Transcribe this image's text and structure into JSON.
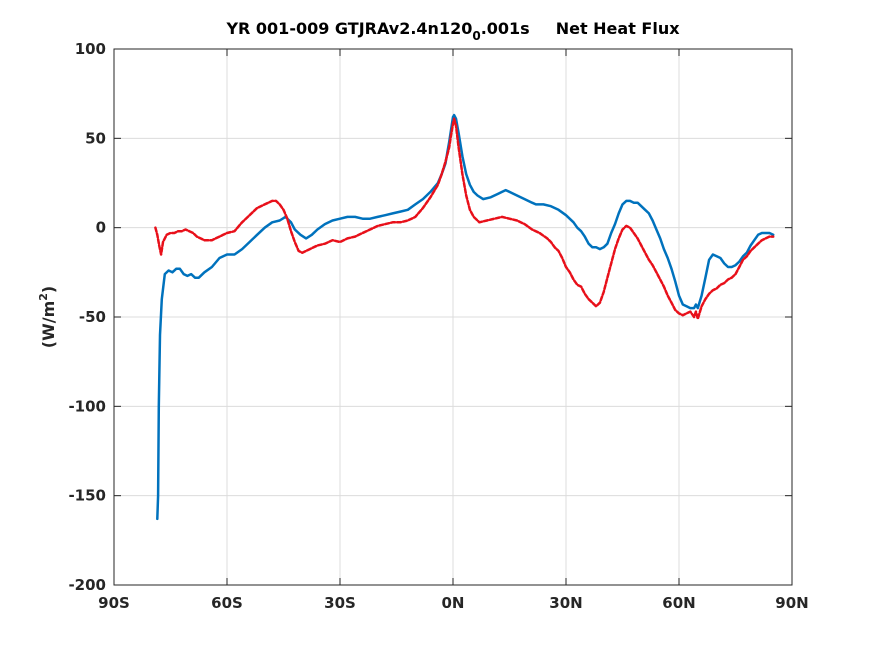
{
  "chart_data": {
    "type": "line",
    "title": {
      "prefix": "YR 001-009 GTJRAv2.4n120",
      "subscript": "0",
      "suffix": ".001s",
      "variable": "Net Heat Flux"
    },
    "ylabel": {
      "main": "(W/m",
      "sup": "2",
      "close": ")"
    },
    "xlabel": "",
    "xlim": [
      -90,
      90
    ],
    "ylim": [
      -200,
      100
    ],
    "grid": true,
    "x_ticks": [
      {
        "value": -90,
        "label": "90S"
      },
      {
        "value": -60,
        "label": "60S"
      },
      {
        "value": -30,
        "label": "30S"
      },
      {
        "value": 0,
        "label": "0N"
      },
      {
        "value": 30,
        "label": "30N"
      },
      {
        "value": 60,
        "label": "60N"
      },
      {
        "value": 90,
        "label": "90N"
      }
    ],
    "y_ticks": [
      {
        "value": 100,
        "label": "100"
      },
      {
        "value": 50,
        "label": "50"
      },
      {
        "value": 0,
        "label": "0"
      },
      {
        "value": -50,
        "label": "-50"
      },
      {
        "value": -100,
        "label": "-100"
      },
      {
        "value": -150,
        "label": "-150"
      },
      {
        "value": -200,
        "label": "-200"
      }
    ],
    "series": [
      {
        "color": "#0072bd",
        "style": "solid",
        "points": [
          [
            -78.5,
            -163
          ],
          [
            -78.3,
            -150
          ],
          [
            -78.1,
            -100
          ],
          [
            -77.8,
            -60
          ],
          [
            -77.3,
            -40
          ],
          [
            -76.5,
            -26
          ],
          [
            -75.5,
            -24
          ],
          [
            -74.5,
            -25
          ],
          [
            -73.5,
            -23
          ],
          [
            -72.5,
            -23
          ],
          [
            -71.5,
            -26
          ],
          [
            -70.5,
            -27
          ],
          [
            -69.5,
            -26
          ],
          [
            -68.5,
            -28
          ],
          [
            -67.5,
            -28
          ],
          [
            -66,
            -25
          ],
          [
            -64,
            -22
          ],
          [
            -62,
            -17
          ],
          [
            -60,
            -15
          ],
          [
            -58,
            -15
          ],
          [
            -56,
            -12
          ],
          [
            -54,
            -8
          ],
          [
            -52,
            -4
          ],
          [
            -50,
            0
          ],
          [
            -48,
            3
          ],
          [
            -46,
            4
          ],
          [
            -44.5,
            6
          ],
          [
            -43,
            3
          ],
          [
            -42,
            -1
          ],
          [
            -40.5,
            -4
          ],
          [
            -39,
            -6
          ],
          [
            -37.5,
            -4
          ],
          [
            -36,
            -1
          ],
          [
            -34,
            2
          ],
          [
            -32,
            4
          ],
          [
            -30,
            5
          ],
          [
            -28,
            6
          ],
          [
            -26,
            6
          ],
          [
            -24,
            5
          ],
          [
            -22,
            5
          ],
          [
            -20,
            6
          ],
          [
            -18,
            7
          ],
          [
            -16,
            8
          ],
          [
            -14,
            9
          ],
          [
            -12,
            10
          ],
          [
            -10,
            13
          ],
          [
            -8,
            16
          ],
          [
            -6,
            20
          ],
          [
            -4,
            25
          ],
          [
            -3,
            30
          ],
          [
            -2,
            36
          ],
          [
            -1.5,
            42
          ],
          [
            -1,
            48
          ],
          [
            -0.5,
            55
          ],
          [
            0,
            62
          ],
          [
            0.3,
            63
          ],
          [
            0.8,
            61
          ],
          [
            1.5,
            53
          ],
          [
            2.5,
            40
          ],
          [
            3.5,
            30
          ],
          [
            4.5,
            24
          ],
          [
            5.5,
            20
          ],
          [
            6.5,
            18
          ],
          [
            8,
            16
          ],
          [
            10,
            17
          ],
          [
            12,
            19
          ],
          [
            13,
            20
          ],
          [
            14,
            21
          ],
          [
            15,
            20
          ],
          [
            17,
            18
          ],
          [
            19,
            16
          ],
          [
            21,
            14
          ],
          [
            22,
            13
          ],
          [
            24,
            13
          ],
          [
            26,
            12
          ],
          [
            28,
            10
          ],
          [
            30,
            7
          ],
          [
            32,
            3
          ],
          [
            33,
            0
          ],
          [
            34,
            -2
          ],
          [
            35,
            -5
          ],
          [
            36,
            -9
          ],
          [
            37,
            -11
          ],
          [
            38,
            -11
          ],
          [
            39,
            -12
          ],
          [
            40,
            -11
          ],
          [
            41,
            -9
          ],
          [
            42,
            -3
          ],
          [
            43,
            2
          ],
          [
            44,
            8
          ],
          [
            45,
            13
          ],
          [
            46,
            15
          ],
          [
            47,
            15
          ],
          [
            48,
            14
          ],
          [
            49,
            14
          ],
          [
            50,
            12
          ],
          [
            51,
            10
          ],
          [
            52,
            8
          ],
          [
            53,
            4
          ],
          [
            54,
            -1
          ],
          [
            55,
            -6
          ],
          [
            56,
            -12
          ],
          [
            57,
            -17
          ],
          [
            58,
            -23
          ],
          [
            59,
            -30
          ],
          [
            60,
            -38
          ],
          [
            61,
            -43
          ],
          [
            62,
            -44
          ],
          [
            63,
            -45
          ],
          [
            64,
            -45
          ],
          [
            64.5,
            -43
          ],
          [
            65,
            -45
          ],
          [
            66,
            -38
          ],
          [
            67,
            -28
          ],
          [
            68,
            -18
          ],
          [
            69,
            -15
          ],
          [
            70,
            -16
          ],
          [
            71,
            -17
          ],
          [
            72,
            -20
          ],
          [
            73,
            -22
          ],
          [
            74,
            -22
          ],
          [
            75,
            -21
          ],
          [
            76,
            -19
          ],
          [
            77,
            -16
          ],
          [
            78,
            -14
          ],
          [
            79,
            -10
          ],
          [
            80,
            -7
          ],
          [
            81,
            -4
          ],
          [
            82,
            -3
          ],
          [
            83,
            -3
          ],
          [
            84,
            -3
          ],
          [
            85,
            -4
          ]
        ]
      },
      {
        "color": "#e8101a",
        "style": "dashed",
        "points": [
          [
            -79,
            0
          ],
          [
            -78.5,
            -4
          ],
          [
            -78,
            -10
          ],
          [
            -77.5,
            -15
          ],
          [
            -77,
            -8
          ],
          [
            -76.5,
            -6
          ],
          [
            -76,
            -4
          ],
          [
            -75,
            -3
          ],
          [
            -74,
            -3
          ],
          [
            -73,
            -2
          ],
          [
            -72,
            -2
          ],
          [
            -71,
            -1
          ],
          [
            -70,
            -2
          ],
          [
            -69,
            -3
          ],
          [
            -68,
            -5
          ],
          [
            -67,
            -6
          ],
          [
            -66,
            -7
          ],
          [
            -65,
            -7
          ],
          [
            -64,
            -7
          ],
          [
            -63,
            -6
          ],
          [
            -62,
            -5
          ],
          [
            -61,
            -4
          ],
          [
            -60,
            -3
          ],
          [
            -58,
            -2
          ],
          [
            -56,
            3
          ],
          [
            -54,
            7
          ],
          [
            -52,
            11
          ],
          [
            -50,
            13
          ],
          [
            -48,
            15
          ],
          [
            -47,
            15
          ],
          [
            -46,
            13
          ],
          [
            -45,
            10
          ],
          [
            -44,
            5
          ],
          [
            -43,
            -2
          ],
          [
            -42,
            -8
          ],
          [
            -41,
            -13
          ],
          [
            -40,
            -14
          ],
          [
            -39,
            -13
          ],
          [
            -38,
            -12
          ],
          [
            -36,
            -10
          ],
          [
            -34,
            -9
          ],
          [
            -32,
            -7
          ],
          [
            -30,
            -8
          ],
          [
            -28,
            -6
          ],
          [
            -26,
            -5
          ],
          [
            -24,
            -3
          ],
          [
            -22,
            -1
          ],
          [
            -20,
            1
          ],
          [
            -18,
            2
          ],
          [
            -16,
            3
          ],
          [
            -14,
            3
          ],
          [
            -12,
            4
          ],
          [
            -10,
            6
          ],
          [
            -8,
            11
          ],
          [
            -6,
            17
          ],
          [
            -4,
            24
          ],
          [
            -3,
            30
          ],
          [
            -2,
            37
          ],
          [
            -1,
            45
          ],
          [
            -0.5,
            52
          ],
          [
            0,
            58
          ],
          [
            0.3,
            61
          ],
          [
            0.8,
            57
          ],
          [
            1.5,
            45
          ],
          [
            2.5,
            30
          ],
          [
            3.5,
            18
          ],
          [
            4.5,
            10
          ],
          [
            5.5,
            6
          ],
          [
            7,
            3
          ],
          [
            9,
            4
          ],
          [
            11,
            5
          ],
          [
            13,
            6
          ],
          [
            15,
            5
          ],
          [
            17,
            4
          ],
          [
            19,
            2
          ],
          [
            21,
            -1
          ],
          [
            23,
            -3
          ],
          [
            25,
            -6
          ],
          [
            26,
            -8
          ],
          [
            27,
            -11
          ],
          [
            28,
            -13
          ],
          [
            29,
            -17
          ],
          [
            30,
            -22
          ],
          [
            31,
            -25
          ],
          [
            32,
            -29
          ],
          [
            33,
            -32
          ],
          [
            34,
            -33
          ],
          [
            35,
            -37
          ],
          [
            36,
            -40
          ],
          [
            37,
            -42
          ],
          [
            38,
            -44
          ],
          [
            39,
            -42
          ],
          [
            40,
            -36
          ],
          [
            41,
            -28
          ],
          [
            42,
            -20
          ],
          [
            43,
            -12
          ],
          [
            44,
            -6
          ],
          [
            45,
            -1
          ],
          [
            46,
            1
          ],
          [
            47,
            0
          ],
          [
            48,
            -3
          ],
          [
            49,
            -6
          ],
          [
            50,
            -10
          ],
          [
            51,
            -14
          ],
          [
            52,
            -18
          ],
          [
            53,
            -21
          ],
          [
            54,
            -25
          ],
          [
            55,
            -29
          ],
          [
            56,
            -33
          ],
          [
            57,
            -38
          ],
          [
            58,
            -42
          ],
          [
            59,
            -46
          ],
          [
            60,
            -48
          ],
          [
            61,
            -49
          ],
          [
            62,
            -48
          ],
          [
            63,
            -47
          ],
          [
            64,
            -50
          ],
          [
            64.5,
            -47
          ],
          [
            65,
            -51
          ],
          [
            66,
            -44
          ],
          [
            67,
            -40
          ],
          [
            68,
            -37
          ],
          [
            69,
            -35
          ],
          [
            70,
            -34
          ],
          [
            71,
            -32
          ],
          [
            72,
            -31
          ],
          [
            73,
            -29
          ],
          [
            74,
            -28
          ],
          [
            75,
            -26
          ],
          [
            76,
            -22
          ],
          [
            77,
            -18
          ],
          [
            78,
            -16
          ],
          [
            79,
            -13
          ],
          [
            80,
            -11
          ],
          [
            81,
            -9
          ],
          [
            82,
            -7
          ],
          [
            83,
            -6
          ],
          [
            84,
            -5
          ],
          [
            85,
            -5
          ]
        ]
      }
    ]
  }
}
